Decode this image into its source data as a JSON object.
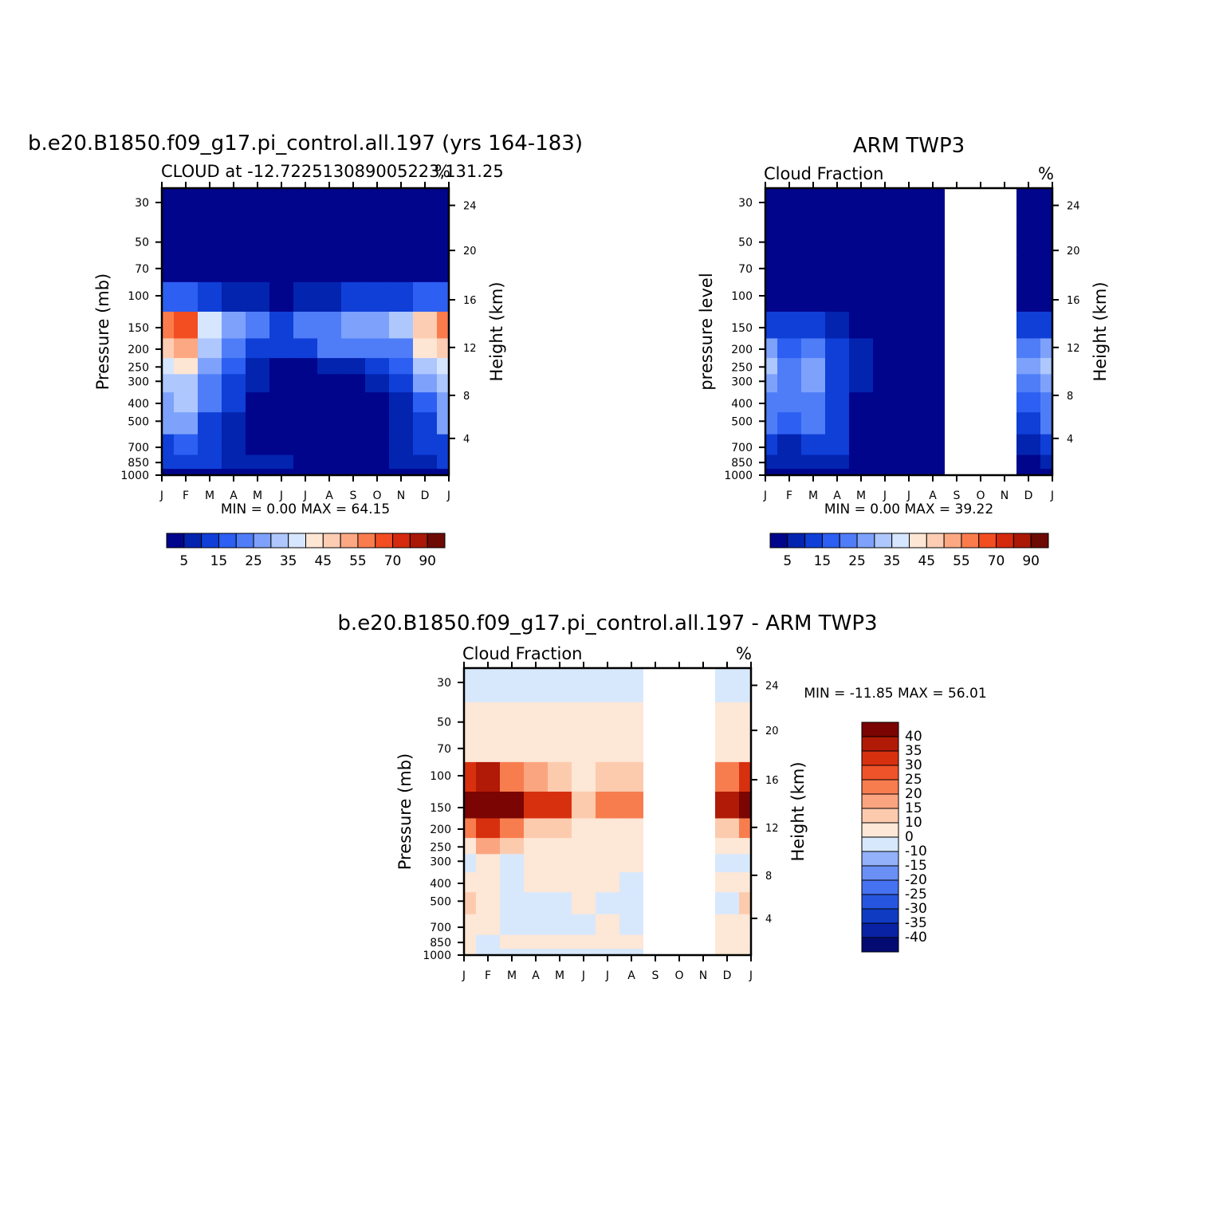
{
  "figure_title_top_left": "b.e20.B1850.f09_g17.pi_control.all.197 (yrs 164-183)",
  "figure_title_top_right": "ARM TWP3",
  "figure_title_bottom": "b.e20.B1850.f09_g17.pi_control.all.197 - ARM TWP3",
  "colors": {
    "abs_scale": [
      "#00058c",
      "#0324af",
      "#0f3fd7",
      "#2c5ff2",
      "#4f7df8",
      "#7ea2fb",
      "#aec7fd",
      "#d6e6fe",
      "#fee6d4",
      "#fdcdb3",
      "#fca883",
      "#fa7c4d",
      "#f24e22",
      "#d52a0d",
      "#aa1806",
      "#6e0a04"
    ],
    "diff_scale": [
      "#030b72",
      "#0922a3",
      "#0f3bc3",
      "#2655e0",
      "#4572f0",
      "#6a90f6",
      "#93b1fa",
      "#d7e8fd",
      "#fde7d6",
      "#fccbae",
      "#fba580",
      "#f77d4f",
      "#ef5329",
      "#d7300f",
      "#b01a06",
      "#7a0503"
    ],
    "missing": "#ffffff"
  },
  "chart_data": [
    {
      "type": "heatmap",
      "name_id": "model",
      "title": "CLOUD at -12.722513089005223,131.25",
      "left_label": "CLOUD at -12.722513089005223,131.25",
      "right_label": "%",
      "xlabel": "",
      "ylabel": "Pressure (mb)",
      "y2label": "Height (km)",
      "x_ticks": [
        "J",
        "F",
        "M",
        "A",
        "M",
        "J",
        "J",
        "A",
        "S",
        "O",
        "N",
        "D",
        "J"
      ],
      "y_ticks": [
        "30",
        "50",
        "70",
        "100",
        "150",
        "200",
        "250",
        "300",
        "400",
        "500",
        "700",
        "850",
        "1000"
      ],
      "y2_ticks": [
        "24",
        "20",
        "16",
        "12",
        "8",
        "4"
      ],
      "stats": "MIN = 0.00 MAX = 64.15",
      "min": 0.0,
      "max": 64.15,
      "colorbar_labels": [
        "5",
        "15",
        "25",
        "35",
        "45",
        "55",
        "70",
        "90"
      ],
      "colorbar_levels": [
        5,
        10,
        15,
        20,
        25,
        30,
        35,
        40,
        45,
        50,
        55,
        60,
        70,
        80,
        90
      ],
      "missing_months": [],
      "profile_months": [
        "J",
        "F",
        "M",
        "A",
        "M",
        "J",
        "J",
        "A",
        "S",
        "O",
        "N",
        "D",
        "J"
      ],
      "profiles": {
        "30": [
          0,
          0,
          0,
          0,
          0,
          0,
          0,
          0,
          0,
          0,
          0,
          0,
          0
        ],
        "50": [
          0,
          0,
          0,
          0,
          0,
          0,
          0,
          0,
          0,
          0,
          0,
          0,
          0
        ],
        "70": [
          1,
          1,
          0,
          0,
          0,
          0,
          0,
          0,
          0,
          0,
          0,
          1,
          1
        ],
        "100": [
          18,
          15,
          10,
          6,
          5,
          4,
          6,
          8,
          10,
          12,
          14,
          17,
          18
        ],
        "150": [
          58,
          64,
          38,
          28,
          22,
          14,
          20,
          24,
          26,
          27,
          30,
          48,
          58
        ],
        "200": [
          46,
          52,
          34,
          22,
          12,
          10,
          14,
          20,
          22,
          20,
          24,
          40,
          46
        ],
        "250": [
          36,
          40,
          26,
          16,
          8,
          4,
          4,
          6,
          8,
          12,
          16,
          32,
          36
        ],
        "300": [
          32,
          34,
          24,
          14,
          6,
          2,
          1,
          2,
          4,
          8,
          12,
          26,
          32
        ],
        "400": [
          28,
          30,
          20,
          10,
          4,
          1,
          0,
          0,
          1,
          4,
          8,
          18,
          28
        ],
        "500": [
          26,
          28,
          14,
          8,
          3,
          1,
          0,
          0,
          1,
          2,
          6,
          14,
          26
        ],
        "700": [
          14,
          16,
          12,
          8,
          4,
          1,
          0,
          0,
          1,
          3,
          6,
          10,
          14
        ],
        "850": [
          10,
          12,
          10,
          8,
          6,
          5,
          4,
          3,
          2,
          3,
          6,
          8,
          10
        ],
        "1000": [
          1,
          1,
          1,
          1,
          1,
          1,
          1,
          1,
          1,
          1,
          1,
          1,
          1
        ]
      }
    },
    {
      "type": "heatmap",
      "name_id": "obs",
      "title": "ARM TWP3",
      "left_label": "Cloud Fraction",
      "right_label": "%",
      "xlabel": "",
      "ylabel": "pressure level",
      "y2label": "Height (km)",
      "x_ticks": [
        "J",
        "F",
        "M",
        "A",
        "M",
        "J",
        "J",
        "A",
        "S",
        "O",
        "N",
        "D",
        "J"
      ],
      "y_ticks": [
        "30",
        "50",
        "70",
        "100",
        "150",
        "200",
        "250",
        "300",
        "400",
        "500",
        "700",
        "850",
        "1000"
      ],
      "y2_ticks": [
        "24",
        "20",
        "16",
        "12",
        "8",
        "4"
      ],
      "stats": "MIN = 0.00 MAX = 39.22",
      "min": 0.0,
      "max": 39.22,
      "colorbar_labels": [
        "5",
        "15",
        "25",
        "35",
        "45",
        "55",
        "70",
        "90"
      ],
      "colorbar_levels": [
        5,
        10,
        15,
        20,
        25,
        30,
        35,
        40,
        45,
        50,
        55,
        60,
        70,
        80,
        90
      ],
      "missing_months": [
        "S",
        "O",
        "N"
      ],
      "profile_months": [
        "J",
        "F",
        "M",
        "A",
        "M",
        "J",
        "J",
        "A",
        "S",
        "O",
        "N",
        "D",
        "J"
      ],
      "profiles": {
        "30": [
          0,
          0,
          0,
          0,
          0,
          0,
          0,
          0,
          null,
          null,
          null,
          0,
          0
        ],
        "50": [
          0,
          0,
          0,
          0,
          0,
          0,
          0,
          0,
          null,
          null,
          null,
          0,
          0
        ],
        "70": [
          0,
          0,
          0,
          0,
          0,
          0,
          0,
          0,
          null,
          null,
          null,
          0,
          0
        ],
        "100": [
          2,
          3,
          4,
          2,
          0,
          0,
          0,
          0,
          null,
          null,
          null,
          2,
          2
        ],
        "150": [
          12,
          10,
          12,
          8,
          4,
          0,
          0,
          0,
          null,
          null,
          null,
          10,
          12
        ],
        "200": [
          26,
          18,
          22,
          12,
          8,
          0,
          0,
          0,
          null,
          null,
          null,
          20,
          26
        ],
        "250": [
          34,
          20,
          28,
          14,
          8,
          0,
          0,
          0,
          null,
          null,
          null,
          26,
          34
        ],
        "300": [
          28,
          22,
          26,
          14,
          6,
          0,
          0,
          0,
          null,
          null,
          null,
          22,
          28
        ],
        "400": [
          22,
          20,
          24,
          14,
          4,
          0,
          0,
          0,
          null,
          null,
          null,
          18,
          22
        ],
        "500": [
          20,
          16,
          22,
          12,
          2,
          0,
          0,
          0,
          null,
          null,
          null,
          14,
          20
        ],
        "700": [
          12,
          8,
          14,
          10,
          2,
          0,
          0,
          0,
          null,
          null,
          null,
          8,
          12
        ],
        "850": [
          8,
          6,
          8,
          6,
          4,
          2,
          0,
          0,
          null,
          null,
          null,
          4,
          8
        ],
        "1000": [
          1,
          1,
          1,
          1,
          1,
          1,
          0,
          0,
          null,
          null,
          null,
          1,
          1
        ]
      }
    },
    {
      "type": "heatmap",
      "name_id": "diff",
      "title": "b.e20.B1850.f09_g17.pi_control.all.197 - ARM TWP3",
      "left_label": "Cloud Fraction",
      "right_label": "%",
      "xlabel": "",
      "ylabel": "Pressure (mb)",
      "y2label": "Height (km)",
      "x_ticks": [
        "J",
        "F",
        "M",
        "A",
        "M",
        "J",
        "J",
        "A",
        "S",
        "O",
        "N",
        "D",
        "J"
      ],
      "y_ticks": [
        "30",
        "50",
        "70",
        "100",
        "150",
        "200",
        "250",
        "300",
        "400",
        "500",
        "700",
        "850",
        "1000"
      ],
      "y2_ticks": [
        "24",
        "20",
        "16",
        "12",
        "8",
        "4"
      ],
      "stats": "MIN = -11.85 MAX = 56.01",
      "min": -11.85,
      "max": 56.01,
      "colorbar_labels": [
        "40",
        "35",
        "30",
        "25",
        "20",
        "15",
        "10",
        "0",
        "-10",
        "-15",
        "-20",
        "-25",
        "-30",
        "-35",
        "-40"
      ],
      "colorbar_levels": [
        -40,
        -35,
        -30,
        -25,
        -20,
        -15,
        -10,
        0,
        10,
        15,
        20,
        25,
        30,
        35,
        40
      ],
      "missing_months": [
        "S",
        "O",
        "N"
      ],
      "profile_months": [
        "J",
        "F",
        "M",
        "A",
        "M",
        "J",
        "J",
        "A",
        "S",
        "O",
        "N",
        "D",
        "J"
      ],
      "profiles": {
        "30": [
          -2,
          -2,
          -2,
          -2,
          -2,
          -2,
          -2,
          -2,
          null,
          null,
          null,
          -2,
          -2
        ],
        "50": [
          2,
          2,
          2,
          2,
          2,
          2,
          2,
          2,
          null,
          null,
          null,
          2,
          2
        ],
        "70": [
          4,
          4,
          4,
          4,
          4,
          4,
          4,
          4,
          null,
          null,
          null,
          4,
          4
        ],
        "100": [
          30,
          35,
          24,
          18,
          14,
          6,
          10,
          14,
          null,
          null,
          null,
          22,
          30
        ],
        "150": [
          48,
          56,
          40,
          32,
          30,
          14,
          22,
          22,
          null,
          null,
          null,
          36,
          48
        ],
        "200": [
          22,
          34,
          20,
          14,
          10,
          6,
          6,
          6,
          null,
          null,
          null,
          14,
          22
        ],
        "250": [
          8,
          18,
          10,
          6,
          4,
          4,
          2,
          2,
          null,
          null,
          null,
          6,
          8
        ],
        "300": [
          -2,
          6,
          -2,
          4,
          2,
          2,
          2,
          2,
          null,
          null,
          null,
          -2,
          -2
        ],
        "400": [
          4,
          2,
          -4,
          2,
          2,
          2,
          2,
          -2,
          null,
          null,
          null,
          2,
          4
        ],
        "500": [
          10,
          6,
          -4,
          -6,
          -4,
          2,
          -4,
          -6,
          null,
          null,
          null,
          -2,
          10
        ],
        "700": [
          2,
          2,
          -4,
          -4,
          -4,
          -2,
          2,
          -2,
          null,
          null,
          null,
          2,
          2
        ],
        "850": [
          2,
          -2,
          4,
          6,
          4,
          6,
          6,
          2,
          null,
          null,
          null,
          2,
          2
        ],
        "1000": [
          2,
          -2,
          -2,
          -2,
          -2,
          -2,
          -2,
          -2,
          null,
          null,
          null,
          2,
          2
        ]
      }
    }
  ]
}
